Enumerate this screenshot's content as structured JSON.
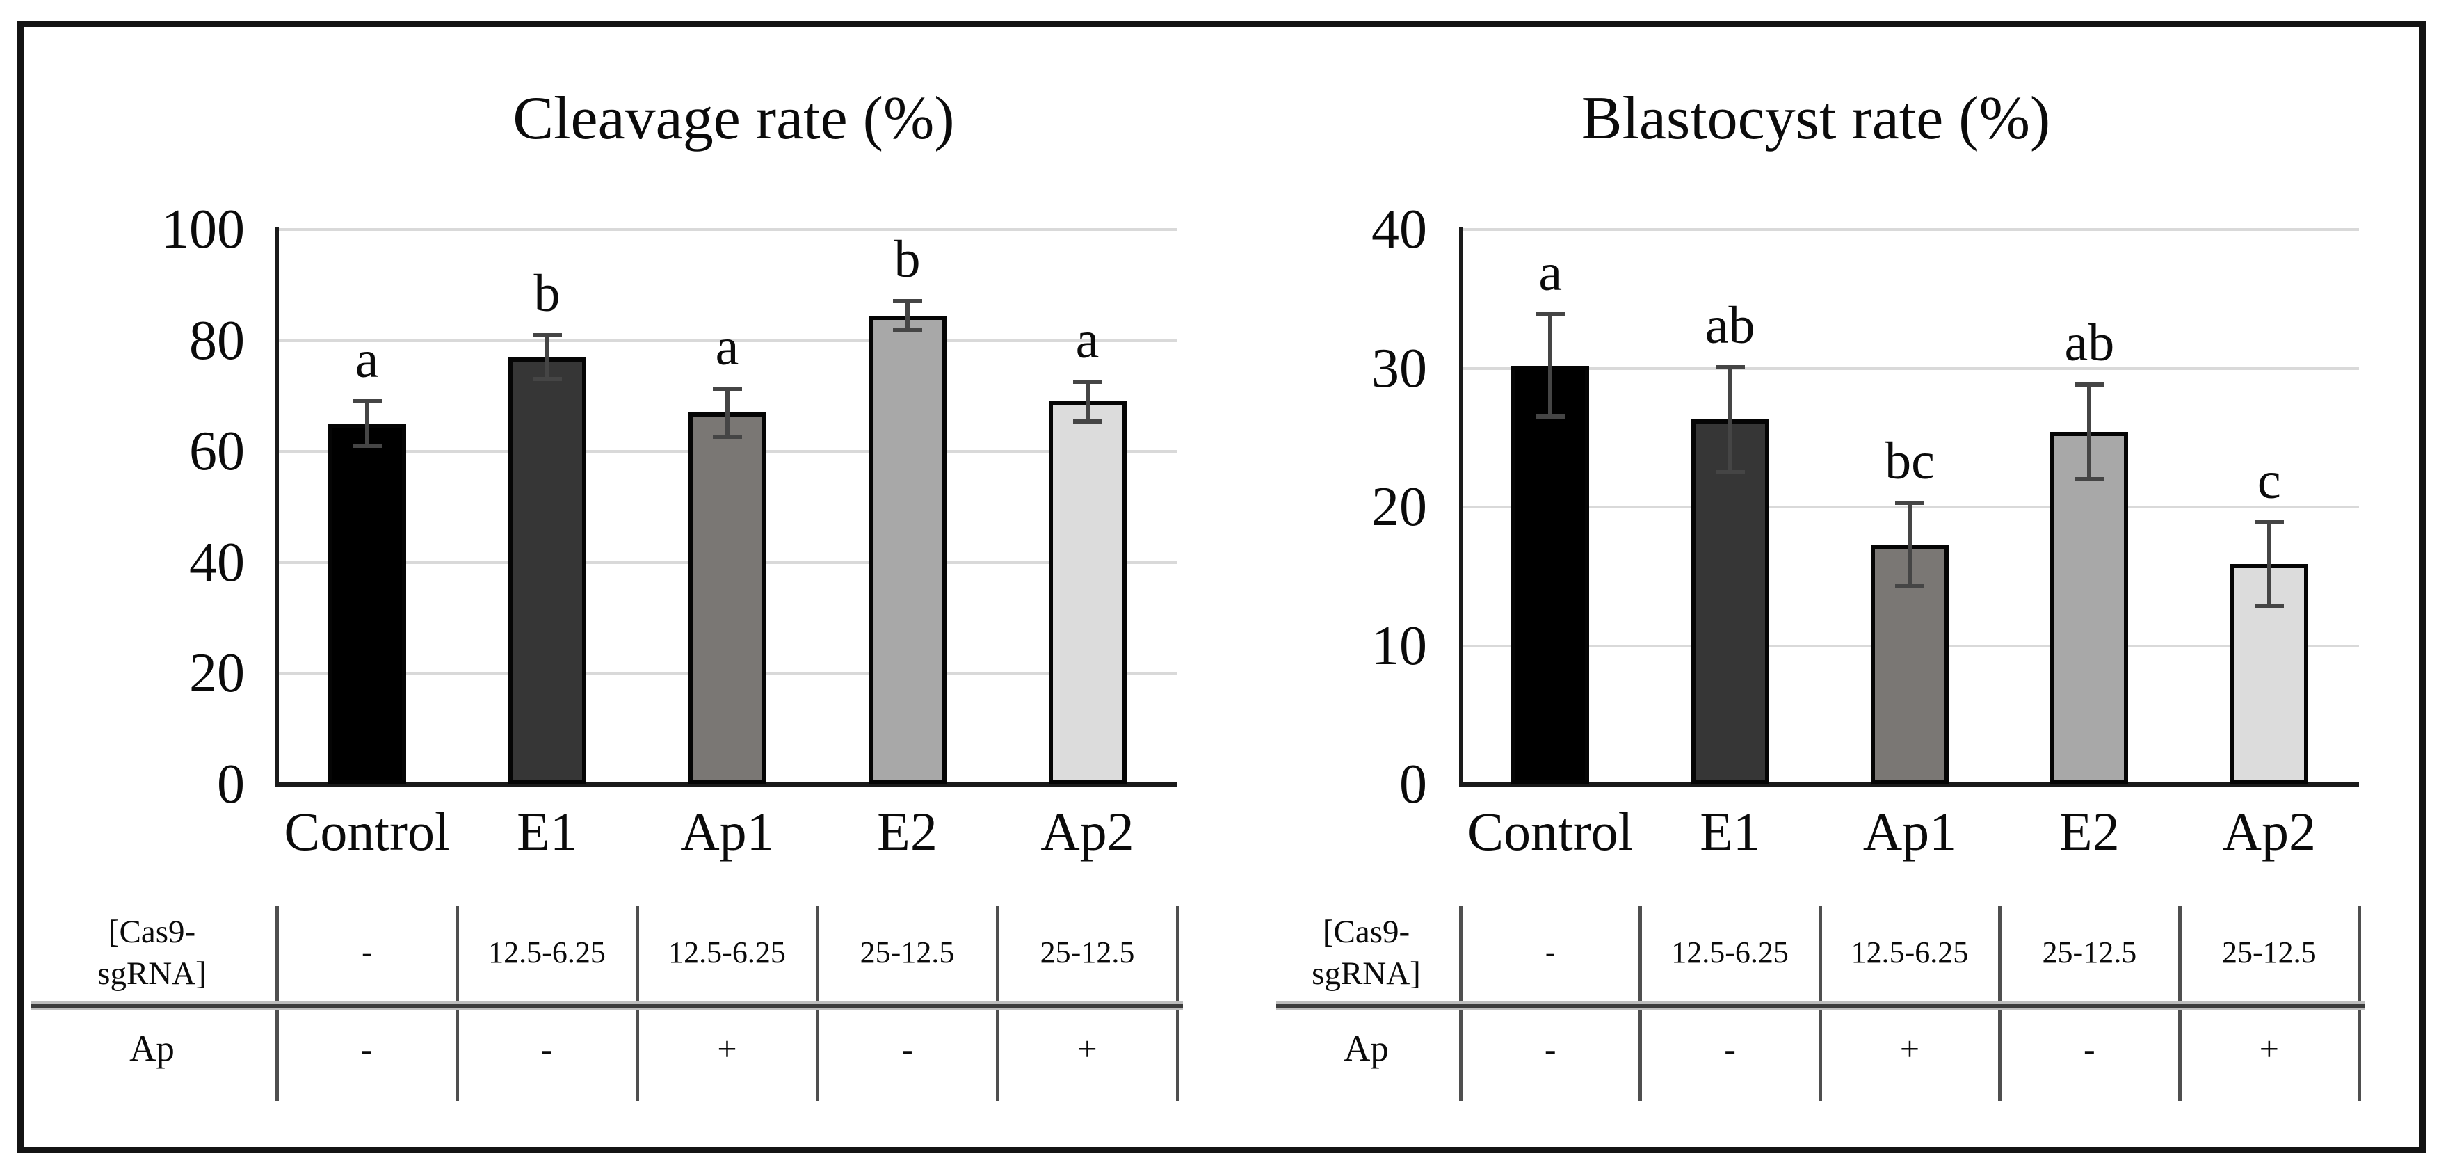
{
  "figure": {
    "background": "#ffffff",
    "border_color": "#141414",
    "font_color": "#0b0b0b",
    "gridline_color": "#d9d9d9",
    "error_bar_color": "#454545"
  },
  "chart_data": [
    {
      "type": "bar",
      "title": "Cleavage rate (%)",
      "xlabel": "",
      "ylabel": "",
      "ylim": [
        0,
        100
      ],
      "yticks": [
        0,
        20,
        40,
        60,
        80,
        100
      ],
      "grid": true,
      "legend": "none",
      "categories": [
        "Control",
        "E1",
        "Ap1",
        "E2",
        "Ap2"
      ],
      "values": [
        65,
        77,
        67,
        84.5,
        69
      ],
      "errors": [
        4,
        4,
        4.3,
        2.6,
        3.6
      ],
      "sig_letters": [
        "a",
        "b",
        "a",
        "b",
        "a"
      ],
      "bar_colors": [
        "#000000",
        "#363636",
        "#7a7774",
        "#a8a8a8",
        "#dcdcdc"
      ],
      "table": {
        "rows": [
          {
            "label": "[Cas9-\nsgRNA]",
            "cells": [
              "-",
              "12.5-6.25",
              "12.5-6.25",
              "25-12.5",
              "25-12.5"
            ]
          },
          {
            "label": "Ap",
            "cells": [
              "-",
              "-",
              "+",
              "-",
              "+"
            ]
          }
        ]
      }
    },
    {
      "type": "bar",
      "title": "Blastocyst rate (%)",
      "xlabel": "",
      "ylabel": "",
      "ylim": [
        0,
        40
      ],
      "yticks": [
        0,
        10,
        20,
        30,
        40
      ],
      "grid": true,
      "legend": "none",
      "categories": [
        "Control",
        "E1",
        "Ap1",
        "E2",
        "Ap2"
      ],
      "values": [
        30.2,
        26.3,
        17.3,
        25.4,
        15.9
      ],
      "errors": [
        3.7,
        3.8,
        3.0,
        3.4,
        3.0
      ],
      "sig_letters": [
        "a",
        "ab",
        "bc",
        "ab",
        "c"
      ],
      "bar_colors": [
        "#000000",
        "#363636",
        "#7a7774",
        "#a8a8a8",
        "#dcdcdc"
      ],
      "table": {
        "rows": [
          {
            "label": "[Cas9-\nsgRNA]",
            "cells": [
              "-",
              "12.5-6.25",
              "12.5-6.25",
              "25-12.5",
              "25-12.5"
            ]
          },
          {
            "label": "Ap",
            "cells": [
              "-",
              "-",
              "+",
              "-",
              "+"
            ]
          }
        ]
      }
    }
  ]
}
